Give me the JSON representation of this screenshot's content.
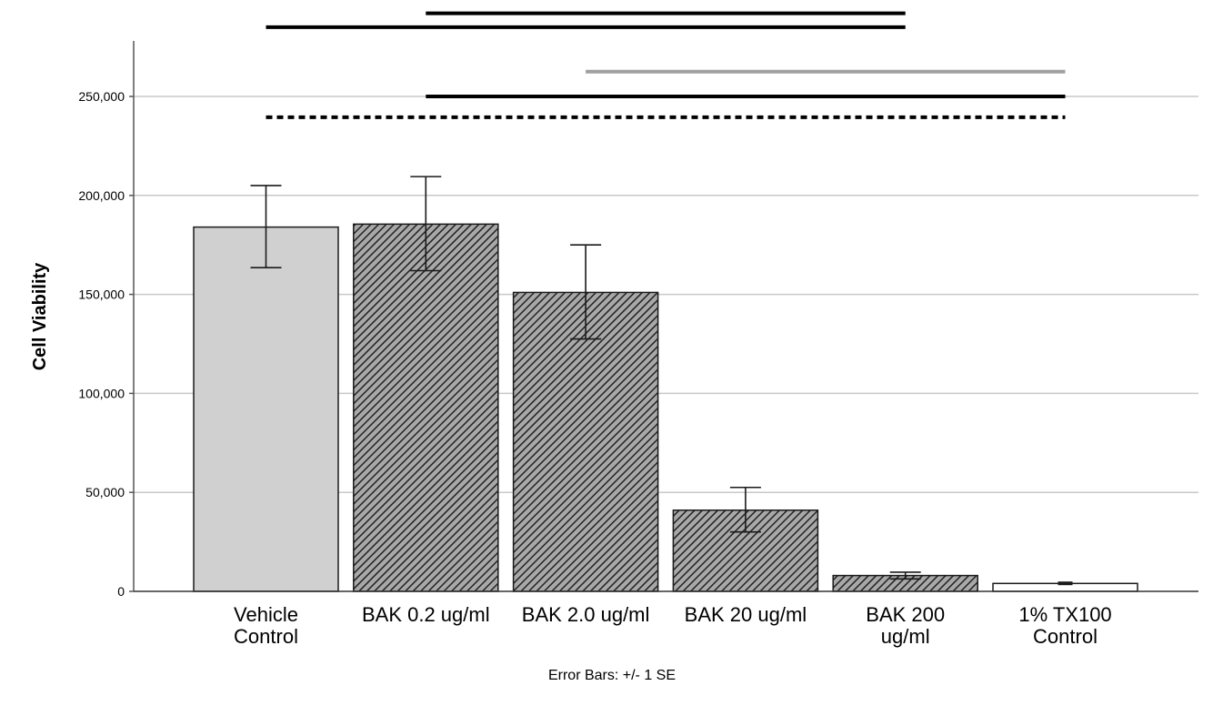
{
  "chart_data": {
    "type": "bar",
    "title": "",
    "xlabel": "",
    "ylabel": "Cell Viability",
    "ylim": [
      0,
      275000
    ],
    "yticks": [
      0,
      50000,
      100000,
      150000,
      200000,
      250000
    ],
    "ytick_labels": [
      "0",
      "50,000",
      "100,000",
      "150,000",
      "200,000",
      "250,000"
    ],
    "grid": true,
    "categories": [
      [
        "Vehicle",
        "Control"
      ],
      [
        "BAK 0.2 ug/ml"
      ],
      [
        "BAK 2.0 ug/ml"
      ],
      [
        "BAK 20 ug/ml"
      ],
      [
        "BAK 200",
        "ug/ml"
      ],
      [
        "1% TX100",
        "Control"
      ]
    ],
    "values": [
      184000,
      185500,
      151000,
      41000,
      8000,
      4000
    ],
    "error_low": [
      163500,
      162000,
      127500,
      30000,
      6300,
      3500
    ],
    "error_high": [
      205000,
      209500,
      175000,
      52500,
      9700,
      4600
    ],
    "error_caption": "Error Bars: +/- 1 SE",
    "bar_styles": [
      "solid-gray",
      "hatched",
      "hatched",
      "hatched",
      "hatched",
      "white"
    ],
    "colors": {
      "solid_fill": "#d0d0d0",
      "hatch_bg": "#a8a8a8",
      "hatch_line": "#222222",
      "empty_fill": "#ffffff",
      "bar_outline": "#1a1a1a",
      "grid": "#c8c8c8",
      "axis": "#555555",
      "comparison_black": "#000000",
      "comparison_gray": "#a0a0a0"
    },
    "comparison_lines": [
      {
        "from": 1,
        "to": 4,
        "level": 292000,
        "style": "solid",
        "color": "black"
      },
      {
        "from": 0,
        "to": 4,
        "level": 285000,
        "style": "solid",
        "color": "black"
      },
      {
        "from": 2,
        "to": 5,
        "level": 262500,
        "style": "solid",
        "color": "gray"
      },
      {
        "from": 1,
        "to": 5,
        "level": 250000,
        "style": "solid",
        "color": "black"
      },
      {
        "from": 0,
        "to": 5,
        "level": 239500,
        "style": "dotted",
        "color": "black"
      }
    ]
  }
}
